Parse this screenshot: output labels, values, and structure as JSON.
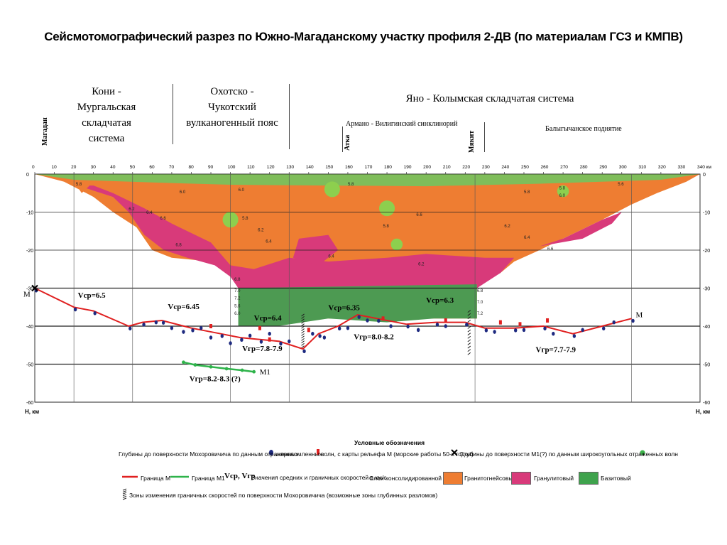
{
  "title": "Сейсмотомографический разрез по Южно-Магаданскому участку профиля 2-ДВ (по материалам ГСЗ и КМПВ)",
  "regions": {
    "koni_line1": "Кони - Мургальская",
    "koni_line2": "складчатая система",
    "okhotsk_line1": "Охотско - Чукотский",
    "okhotsk_line2": "вулканогенный пояс",
    "yano": "Яно - Колымская складчатая система",
    "armano": "Армано - Вилигинский синклинорий",
    "balygychan": "Балыгычанское поднятие"
  },
  "places": {
    "magadan": "Магадан",
    "atka": "Атка",
    "mikit": "Мякит"
  },
  "chart_data": {
    "type": "line",
    "title": "Сейсмотомографический разрез по Южно-Магаданскому участку профиля 2-ДВ (по материалам ГСЗ и КМПВ)",
    "xlabel": "340 км",
    "ylabel": "Н, км",
    "xlim": [
      0,
      340
    ],
    "ylim": [
      0,
      -60
    ],
    "x_ticks": [
      0,
      10,
      20,
      30,
      40,
      50,
      60,
      70,
      80,
      90,
      100,
      110,
      120,
      130,
      140,
      150,
      160,
      170,
      180,
      190,
      200,
      210,
      220,
      230,
      240,
      250,
      260,
      270,
      280,
      290,
      300,
      310,
      320,
      330
    ],
    "y_ticks": [
      0,
      -10,
      -20,
      -30,
      -40,
      -50,
      -60
    ],
    "last_x_tick_label": "340 км",
    "depth_axis_label": "Н, км",
    "boundary_M": {
      "name": "Граница М",
      "x": [
        0,
        20,
        30,
        48,
        55,
        65,
        80,
        95,
        105,
        115,
        125,
        137,
        145,
        155,
        165,
        175,
        190,
        205,
        220,
        230,
        245,
        260,
        275,
        290,
        305
      ],
      "y": [
        -30,
        -35,
        -36,
        -40,
        -39,
        -38.5,
        -40.5,
        -42,
        -43,
        -43.5,
        -44,
        -46,
        -42,
        -40,
        -37,
        -38,
        -39.5,
        -39,
        -39,
        -40.5,
        -40.5,
        -40,
        -42,
        -40,
        -38
      ]
    },
    "boundary_M1": {
      "name": "Граница М1",
      "x": [
        76,
        82,
        90,
        98,
        106,
        112
      ],
      "y": [
        -49.5,
        -50.2,
        -50.7,
        -51.2,
        -51.6,
        -52
      ]
    },
    "labels_M": [
      "M",
      "M"
    ],
    "label_M1": "M1",
    "velocity_annotations": [
      {
        "text": "Vср=6.5",
        "x": 22,
        "y": -32.5
      },
      {
        "text": "Vср=6.45",
        "x": 68,
        "y": -35.5
      },
      {
        "text": "Vср=6.4",
        "x": 112,
        "y": -38.5
      },
      {
        "text": "Vср=6.35",
        "x": 150,
        "y": -35.8
      },
      {
        "text": "Vср=6.3",
        "x": 200,
        "y": -33.8
      },
      {
        "text": "Vгр=7.8-7.9",
        "x": 106,
        "y": -46.5
      },
      {
        "text": "Vгр=8.0-8.2",
        "x": 163,
        "y": -43.5
      },
      {
        "text": "Vгр=7.7-7.9",
        "x": 256,
        "y": -46.8
      },
      {
        "text": "Vгр=8.2-8.3 (?)",
        "x": 79,
        "y": -54.5
      }
    ],
    "layer_labels": [
      "5.8",
      "6.0",
      "6.2",
      "6.4",
      "6.6",
      "6.8",
      "7.0",
      "7.2",
      "5.6"
    ],
    "legend": {
      "heading": "Условные обозначения",
      "row1a": "Глубины до поверхности Мохоровичича по данным  отраженных",
      "row1b": "и  преломленных",
      "row1c": "волн, с карты рельефа М (морские работы 50-х годов)",
      "row1d": "Глубины до поверхности М1(?) по данным  широкоугольных отраженных волн",
      "row2_M": "Граница М",
      "row2_M1": "Граница М1",
      "row2_v": "Vср, Vгр",
      "row2_vtext": "Значения средних и граничных скоростей в км/с",
      "row2_layers": "Слои консолидированной коры:",
      "granite": "Гранитогнейсовый",
      "granulite": "Гранулитовый",
      "basite": "Базитовый",
      "row3": "Зоны изменения граничных скоростей по поверхности Мохоровичича (возможные зоны глубинных разломов)"
    },
    "colors": {
      "granite": "#ee7d32",
      "granulite": "#d83a7a",
      "basite": "#3fa34d",
      "boundary_M": "#e02020",
      "boundary_M1": "#2eb34a",
      "reflected": "#1e2a80",
      "refracted": "#e02020"
    }
  }
}
